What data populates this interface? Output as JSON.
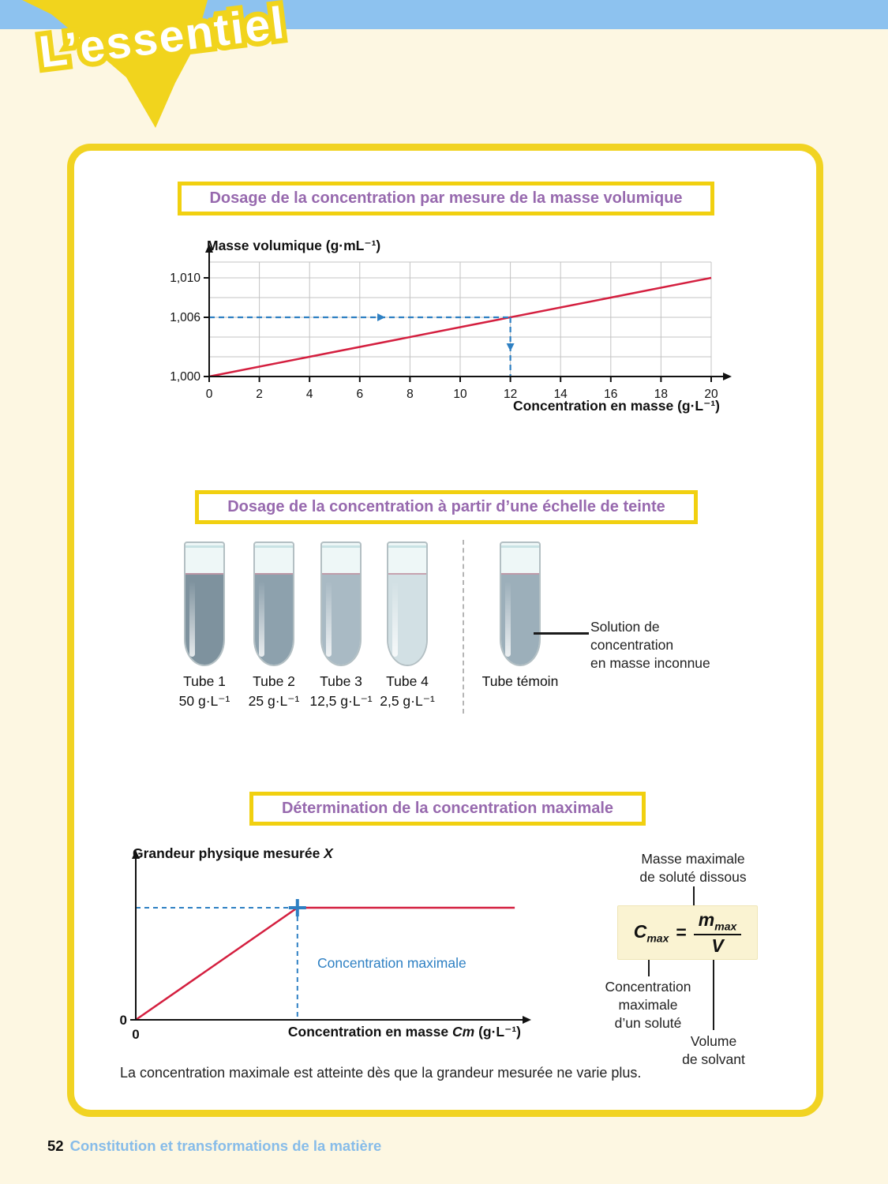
{
  "page": {
    "header_title": "L’essentiel",
    "caption": "La concentration maximale est atteinte dès que la grandeur mesurée ne varie plus.",
    "footer": {
      "page_number": "52",
      "chapter": "Constitution et transformations de la matière"
    }
  },
  "sections": {
    "s1": {
      "title": "Dosage de la concentration par mesure de la masse volumique"
    },
    "s2": {
      "title": "Dosage de la concentration à partir d’une échelle de teinte"
    },
    "s3": {
      "title": "Détermination de la concentration maximale"
    }
  },
  "chart_data": [
    {
      "type": "line",
      "title": "Dosage de la concentration par mesure de la masse volumique",
      "xlabel": "Concentration en masse (g·L⁻¹)",
      "ylabel": "Masse volumique (g·mL⁻¹)",
      "xlim": [
        0,
        20
      ],
      "ylim": [
        1.0,
        1.0116
      ],
      "x_ticks": [
        0,
        2,
        4,
        6,
        8,
        10,
        12,
        14,
        16,
        18,
        20
      ],
      "x_tick_labels": [
        "0",
        "2",
        "4",
        "6",
        "8",
        "10",
        "12",
        "14",
        "16",
        "18",
        "20"
      ],
      "y_grid_step": 0.002,
      "y_ticks": [
        {
          "value": 1.0,
          "label": "1,000"
        },
        {
          "value": 1.006,
          "label": "1,006"
        },
        {
          "value": 1.01,
          "label": "1,010"
        }
      ],
      "grid": true,
      "series": [
        {
          "name": "masse volumique",
          "color": "#d41f3f",
          "points": [
            [
              0,
              1.0
            ],
            [
              20,
              1.01
            ]
          ]
        }
      ],
      "reading_guide": {
        "y_value": 1.006,
        "x_value": 12,
        "color": "#2e80c3"
      }
    },
    {
      "type": "line",
      "title": "Détermination de la concentration maximale",
      "ylabel_parts": {
        "pre": "Grandeur physique mesurée ",
        "italic": "X"
      },
      "xlabel_parts": {
        "pre": "Concentration en masse ",
        "italic": "Cm",
        "post": " (g·L⁻¹)"
      },
      "origin_label_y": "0",
      "origin_label_x": "0",
      "annotation": "Concentration maximale",
      "xlim": [
        0,
        1
      ],
      "ylim": [
        0,
        1
      ],
      "grid": false,
      "series": [
        {
          "name": "grandeur mesurée",
          "color": "#d41f3f",
          "points": [
            [
              0,
              0
            ],
            [
              0.424,
              0.71
            ],
            [
              0.994,
              0.71
            ]
          ]
        }
      ],
      "reading_guide": {
        "x_value": 0.424,
        "y_value": 0.71,
        "color": "#2e80c3"
      }
    }
  ],
  "tubes": {
    "items": [
      {
        "name": "Tube 1",
        "conc": "50 g·L⁻¹",
        "color": "#7e929e"
      },
      {
        "name": "Tube 2",
        "conc": "25 g·L⁻¹",
        "color": "#8da1ad"
      },
      {
        "name": "Tube 3",
        "conc": "12,5 g·L⁻¹",
        "color": "#a9bac4"
      },
      {
        "name": "Tube 4",
        "conc": "2,5 g·L⁻¹",
        "color": "#d2e0e4"
      },
      {
        "name": "Tube témoin",
        "conc": "",
        "color": "#9cafba"
      }
    ],
    "annotation_lines": [
      "Solution de",
      "concentration",
      "en masse inconnue"
    ]
  },
  "formula": {
    "lhs": "C",
    "lhs_sub": "max",
    "equals": "=",
    "num": "m",
    "num_sub": "max",
    "den": "V",
    "label_top": [
      "Masse maximale",
      "de soluté dissous"
    ],
    "label_left": [
      "Concentration",
      "maximale",
      "d’un soluté"
    ],
    "label_right": [
      "Volume",
      "de solvant"
    ]
  },
  "colors": {
    "accent_yellow": "#f1d320",
    "title_purple": "#9769ae",
    "curve_red": "#d41f3f",
    "guide_blue": "#2e80c3",
    "topbar_blue": "#8dc2ef",
    "footer_blue": "#87bce9",
    "page_cream": "#fdf7e2"
  }
}
